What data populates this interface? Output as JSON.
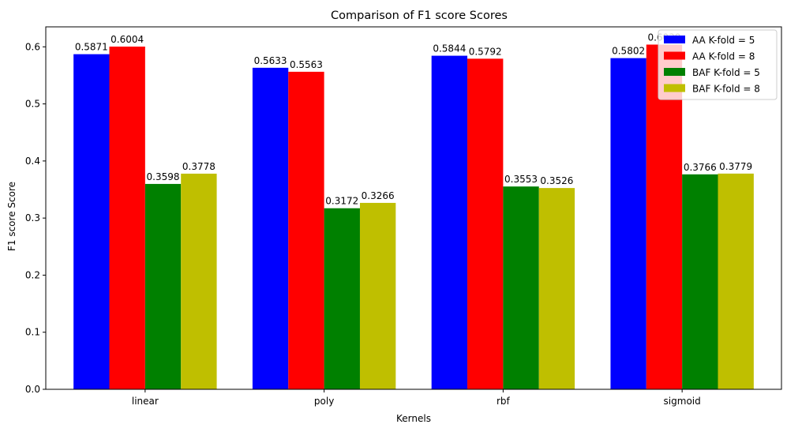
{
  "chart_data": {
    "type": "bar",
    "title": "Comparison of F1 score Scores",
    "xlabel": "Kernels",
    "ylabel": "F1 score Score",
    "categories": [
      "linear",
      "poly",
      "rbf",
      "sigmoid"
    ],
    "ylim": [
      0,
      0.635
    ],
    "yticks": [
      0.0,
      0.1,
      0.2,
      0.3,
      0.4,
      0.5,
      0.6
    ],
    "ytick_labels": [
      "0.0",
      "0.1",
      "0.2",
      "0.3",
      "0.4",
      "0.5",
      "0.6"
    ],
    "grid": false,
    "legend_position": "top-right",
    "series": [
      {
        "name": "AA K-fold = 5",
        "color": "#0000ff",
        "values": [
          0.5871,
          0.5633,
          0.5844,
          0.5802
        ],
        "labels": [
          "0.5871",
          "0.5633",
          "0.5844",
          "0.5802"
        ]
      },
      {
        "name": "AA K-fold = 8",
        "color": "#ff0000",
        "values": [
          0.6004,
          0.5563,
          0.5792,
          0.6039
        ],
        "labels": [
          "0.6004",
          "0.5563",
          "0.5792",
          "0.6039"
        ]
      },
      {
        "name": "BAF K-fold = 5",
        "color": "#008000",
        "values": [
          0.3598,
          0.3172,
          0.3553,
          0.3766
        ],
        "labels": [
          "0.3598",
          "0.3172",
          "0.3553",
          "0.3766"
        ]
      },
      {
        "name": "BAF K-fold = 8",
        "color": "#bfbf00",
        "values": [
          0.3778,
          0.3266,
          0.3526,
          0.3779
        ],
        "labels": [
          "0.3778",
          "0.3266",
          "0.3526",
          "0.3779"
        ]
      }
    ]
  }
}
